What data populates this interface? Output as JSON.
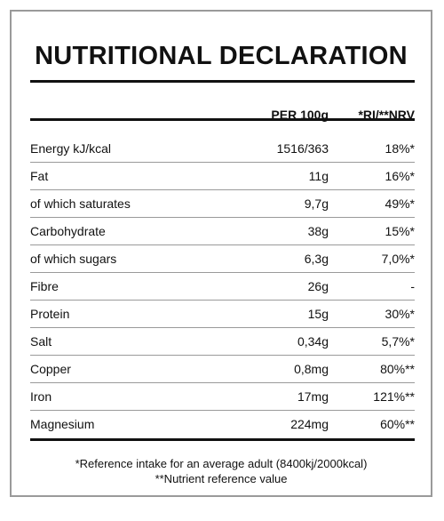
{
  "title": "NUTRITIONAL DECLARATION",
  "header": {
    "per100": "PER 100g",
    "ri": "*RI/**NRV"
  },
  "rows": [
    {
      "name": "Energy kJ/kcal",
      "per100": "1516/363",
      "ri": "18%*"
    },
    {
      "name": "Fat",
      "per100": "11g",
      "ri": "16%*"
    },
    {
      "name": "of which saturates",
      "per100": "9,7g",
      "ri": "49%*"
    },
    {
      "name": "Carbohydrate",
      "per100": "38g",
      "ri": "15%*"
    },
    {
      "name": "of which sugars",
      "per100": "6,3g",
      "ri": "7,0%*"
    },
    {
      "name": "Fibre",
      "per100": "26g",
      "ri": "-"
    },
    {
      "name": "Protein",
      "per100": "15g",
      "ri": "30%*"
    },
    {
      "name": "Salt",
      "per100": "0,34g",
      "ri": "5,7%*"
    },
    {
      "name": "Copper",
      "per100": "0,8mg",
      "ri": "80%**"
    },
    {
      "name": "Iron",
      "per100": "17mg",
      "ri": "121%**"
    },
    {
      "name": "Magnesium",
      "per100": "224mg",
      "ri": "60%**"
    }
  ],
  "footer": {
    "line1": "*Reference intake for an average adult (8400kj/2000kcal)",
    "line2": "**Nutrient reference value"
  }
}
